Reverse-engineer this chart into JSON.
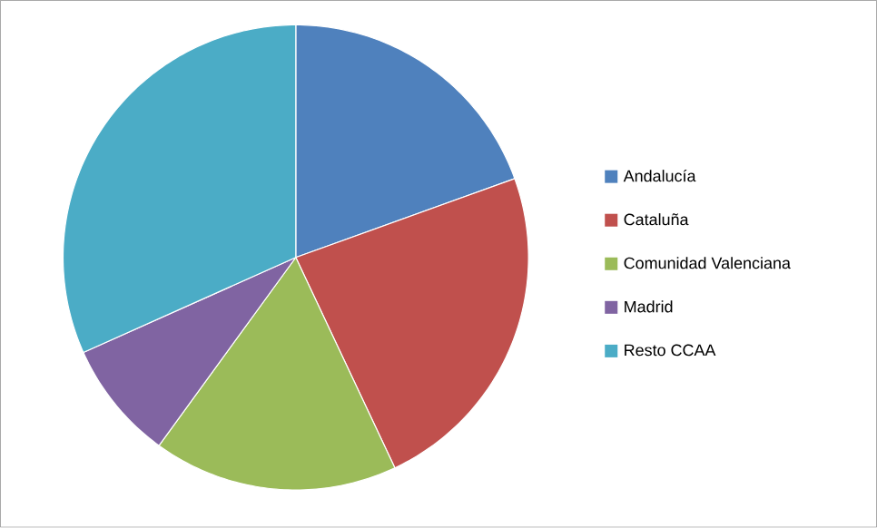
{
  "chart_data": {
    "type": "pie",
    "categories": [
      "Andalucía",
      "Cataluña",
      "Comunidad Valenciana",
      "Madrid",
      "Resto CCAA"
    ],
    "values": [
      19.5,
      23.5,
      17,
      8.3,
      31.7
    ],
    "colors": [
      "#4f81bd",
      "#c0504d",
      "#9bbb59",
      "#8064a2",
      "#4bacc6"
    ],
    "legend": "right"
  }
}
